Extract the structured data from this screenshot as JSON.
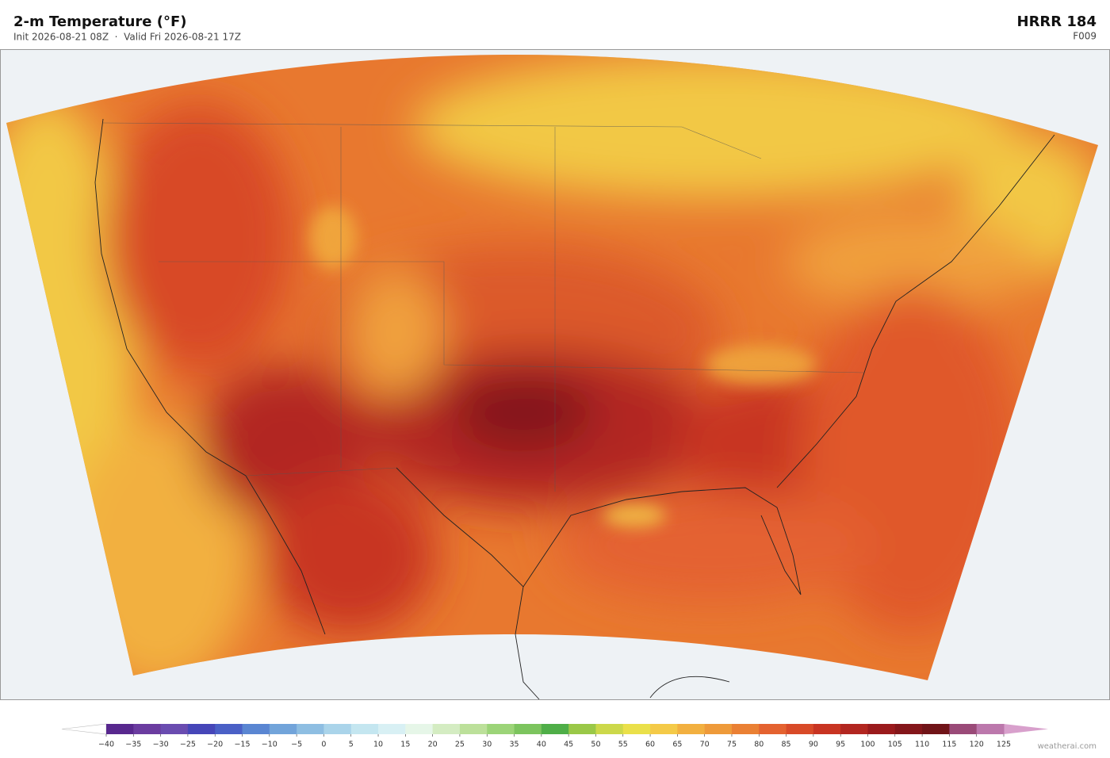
{
  "header": {
    "title": "2-m Temperature  (°F)",
    "subtitle": "Init 2026-08-21 08Z  ·  Valid Fri 2026-08-21 17Z",
    "model": "HRRR  184",
    "forecast_hour": "F009"
  },
  "colorbar": {
    "ticks": [
      {
        "value": -40,
        "label": "−40"
      },
      {
        "value": -35,
        "label": "−35"
      },
      {
        "value": -30,
        "label": "−30"
      },
      {
        "value": -25,
        "label": "−25"
      },
      {
        "value": -20,
        "label": "−20"
      },
      {
        "value": -15,
        "label": "−15"
      },
      {
        "value": -10,
        "label": "−10"
      },
      {
        "value": -5,
        "label": "−5"
      },
      0,
      5,
      10,
      15,
      20,
      25,
      30,
      35,
      40,
      45,
      50,
      55,
      60,
      65,
      70,
      75,
      80,
      85,
      90,
      95,
      100,
      105,
      110,
      115,
      120,
      125
    ],
    "colors": [
      "#58288e",
      "#6b3ca0",
      "#6a4cb0",
      "#4646b8",
      "#4a60c6",
      "#5a86d2",
      "#72a4da",
      "#8ebee2",
      "#aad4ea",
      "#c4e6f0",
      "#d8f0f4",
      "#e6f6e8",
      "#d4ecc2",
      "#bce09a",
      "#9cd478",
      "#7cc45e",
      "#4fae48",
      "#9ac848",
      "#ccd84a",
      "#eae04a",
      "#f4ca48",
      "#f2b040",
      "#ee9a3a",
      "#ea8034",
      "#e46230",
      "#d84a28",
      "#c83422",
      "#b22620",
      "#9a1a1c",
      "#84161a",
      "#701418",
      "#9a4a78",
      "#bc78ac"
    ],
    "under_color": "#ffffff",
    "over_color": "#d8a0cc"
  },
  "credit": "weatherai.com"
}
